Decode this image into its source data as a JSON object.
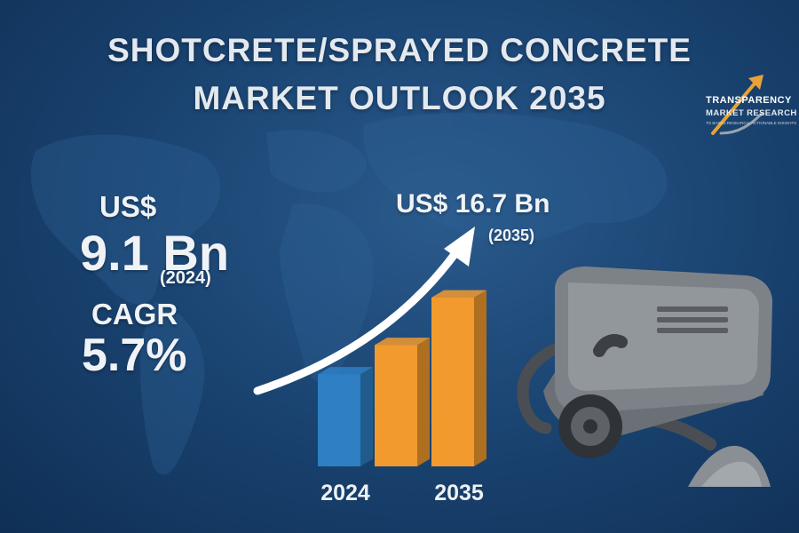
{
  "header": {
    "title_line1": "SHOTCRETE/SPRAYED CONCRETE",
    "title_line2": "MARKET OUTLOOK 2035"
  },
  "logo": {
    "name_line1": "TRANSPARENCY",
    "name_line2": "MARKET RESEARCH",
    "tagline": "TO BASED RESEARCH. ACTIONABLE INSIGHTS",
    "colors": {
      "arrow": "#e8a235",
      "text": "#ffffff"
    }
  },
  "stats": {
    "current": {
      "prefix": "US$",
      "value": "9.1 Bn",
      "year": "(2024)"
    },
    "cagr": {
      "label": "CAGR",
      "value": "5.7%"
    },
    "forecast": {
      "value": "US$ 16.7 Bn",
      "year": "(2035)"
    }
  },
  "illustration": {
    "icon": "shotcrete-machine-icon",
    "description_icon": "concrete-pile-icon"
  },
  "colors": {
    "background": "#1b4573",
    "bar_blue": "#2e7fc4",
    "bar_orange": "#f29a2e",
    "arrow": "#ffffff"
  },
  "chart_data": {
    "type": "bar",
    "categories": [
      "2024",
      "",
      "2035"
    ],
    "values": [
      9.1,
      12.0,
      16.7
    ],
    "value_unit": "US$ Bn",
    "bar_colors": [
      "#2e7fc4",
      "#f29a2e",
      "#f29a2e"
    ],
    "ylim": [
      0,
      18
    ],
    "grid": false,
    "axes_visible": false,
    "annotations": [
      {
        "text": "US$ 16.7 Bn",
        "sub": "(2035)",
        "attached_to": "2035"
      }
    ],
    "trend_arrow": true
  }
}
